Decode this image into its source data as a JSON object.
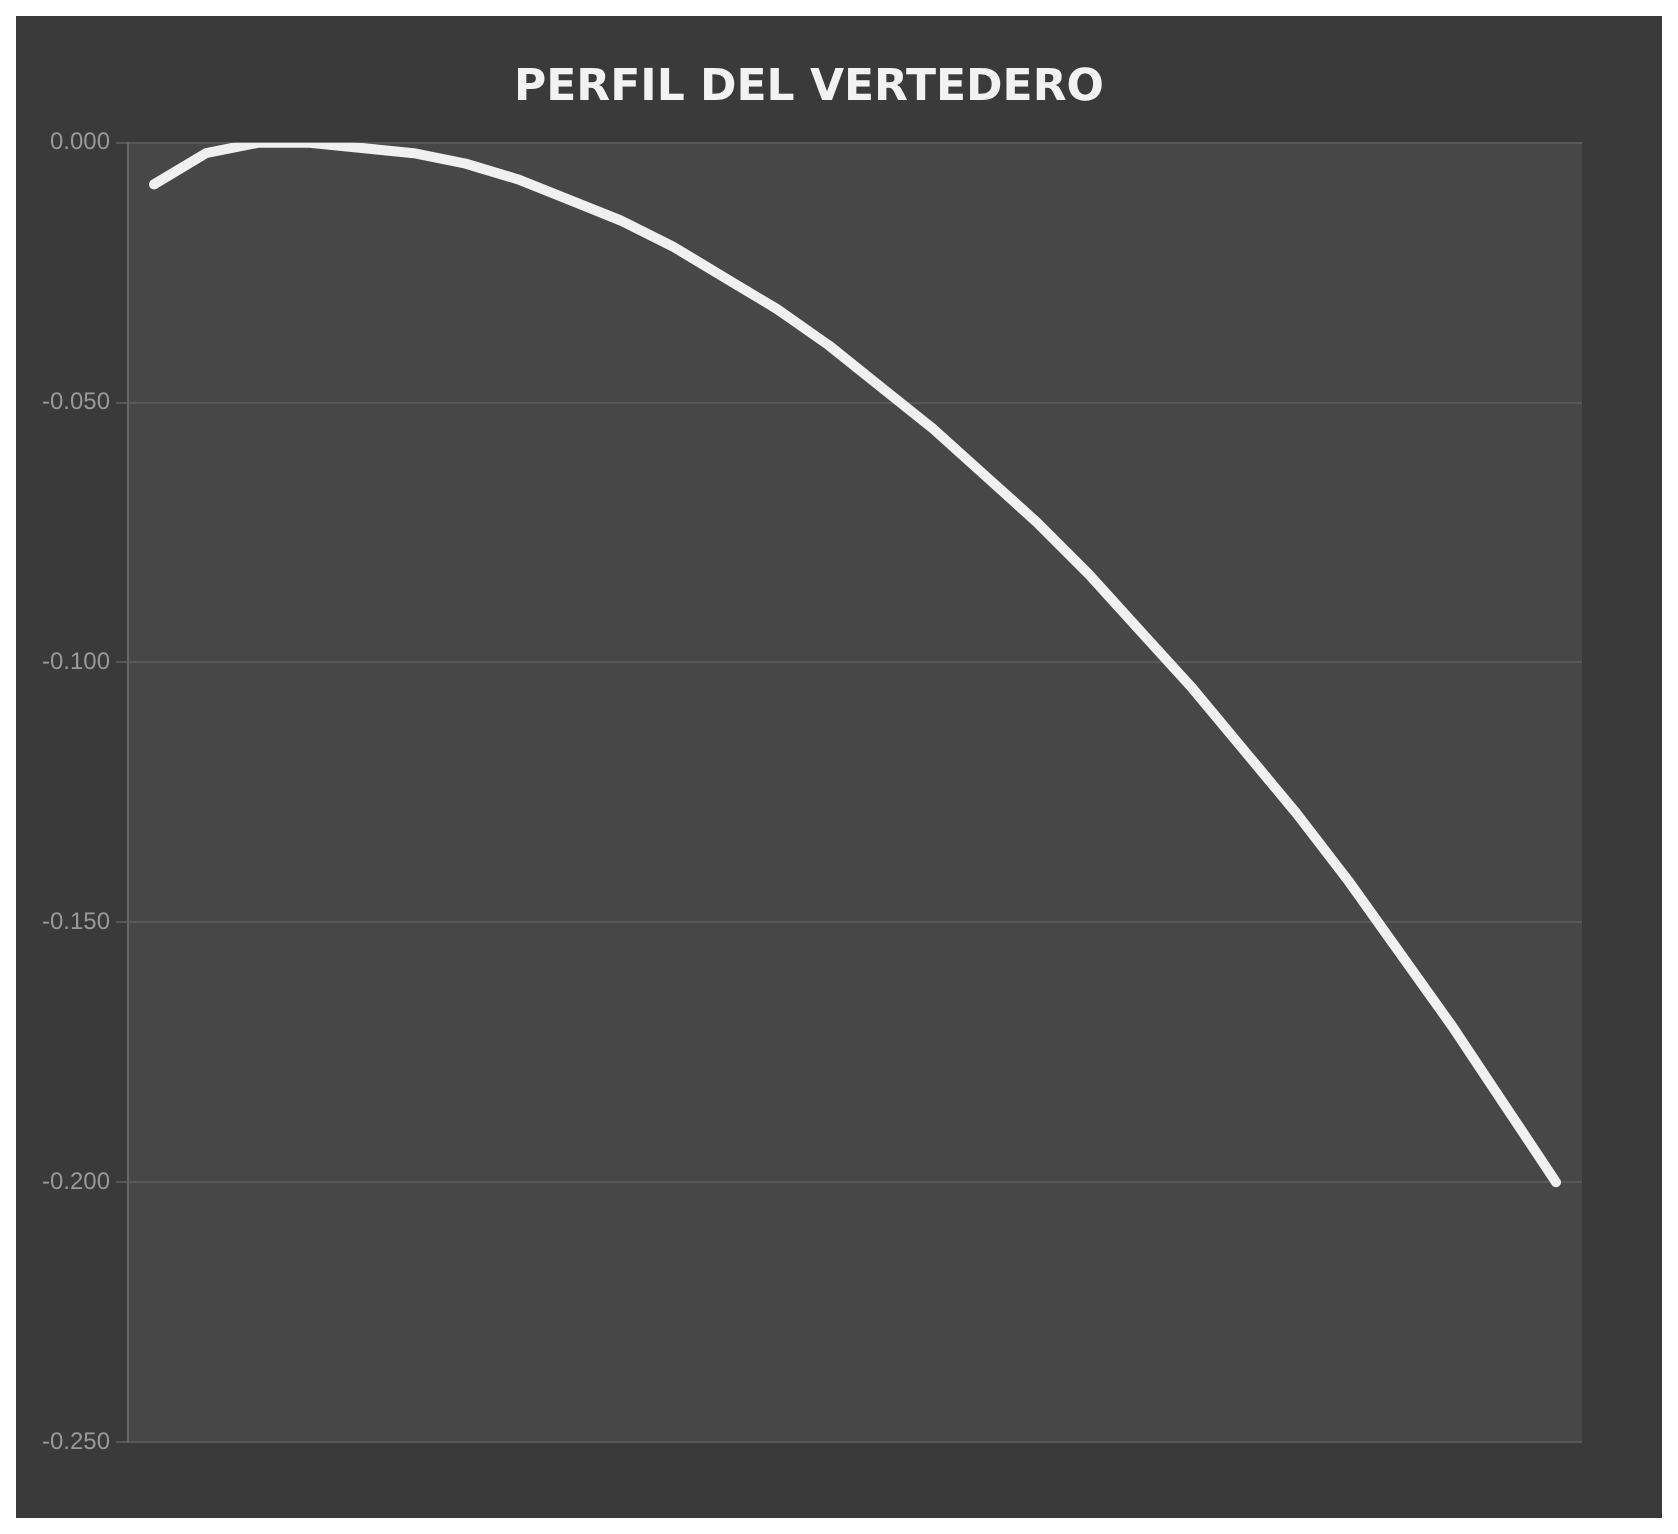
{
  "chart_data": {
    "type": "line",
    "title": "PERFIL DEL VERTEDERO",
    "categories": [
      null,
      null,
      null,
      null,
      null,
      null,
      null,
      null,
      null,
      null,
      null,
      null,
      null,
      null,
      null,
      null,
      null,
      null,
      null,
      null,
      null,
      null,
      null,
      null,
      null,
      null,
      null,
      null
    ],
    "series": [
      {
        "color": "#f0f0f0",
        "values": [
          -0.008,
          -0.002,
          0.0,
          0.0,
          -0.001,
          -0.002,
          -0.004,
          -0.007,
          -0.011,
          -0.015,
          -0.02,
          -0.026,
          -0.032,
          -0.039,
          -0.047,
          -0.055,
          -0.064,
          -0.073,
          -0.083,
          -0.094,
          -0.105,
          -0.117,
          -0.129,
          -0.142,
          -0.156,
          -0.17,
          -0.185,
          -0.2
        ]
      }
    ],
    "ylim": [
      -0.25,
      0.0
    ],
    "yticks": [
      {
        "value": 0,
        "label": "0.000"
      },
      {
        "value": -0.05,
        "label": "-0.050"
      },
      {
        "value": -0.1,
        "label": "-0.100"
      },
      {
        "value": -0.15,
        "label": "-0.150"
      },
      {
        "value": -0.2,
        "label": "-0.200"
      },
      {
        "value": -0.25,
        "label": "-0.250"
      }
    ],
    "grid": "y",
    "legend": false,
    "marker": "none",
    "line_style": "solid",
    "tick_labels": "y"
  }
}
